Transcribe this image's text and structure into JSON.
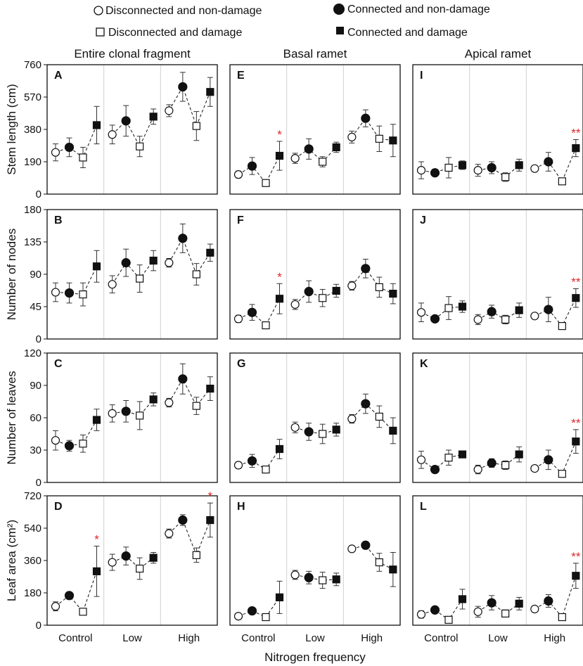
{
  "legend": {
    "items": [
      {
        "label": "Disconnected and non-damage",
        "marker": "open-circle"
      },
      {
        "label": "Connected and non-damage",
        "marker": "filled-circle"
      },
      {
        "label": "Disconnected and damage",
        "marker": "open-square"
      },
      {
        "label": "Connected and damage",
        "marker": "filled-square"
      }
    ]
  },
  "column_headers": [
    "Entire clonal fragment",
    "Basal ramet",
    "Apical ramet"
  ],
  "xlabel": "Nitrogen frequency",
  "categories": [
    "Control",
    "Low",
    "High"
  ],
  "significance_color": "#e0262a",
  "chart_data": [
    {
      "type": "scatter",
      "panel": "A",
      "row": 0,
      "col": 0,
      "ylabel": "Stem length (cm)",
      "ylim": [
        0,
        760
      ],
      "yticks": [
        "0",
        "190",
        "380",
        "570",
        "760"
      ],
      "points": [
        {
          "g": "Control",
          "t": "DN",
          "mean": 245,
          "err": 50
        },
        {
          "g": "Control",
          "t": "CN",
          "mean": 275,
          "err": 55
        },
        {
          "g": "Control",
          "t": "DD",
          "mean": 215,
          "err": 60
        },
        {
          "g": "Control",
          "t": "CD",
          "mean": 405,
          "err": 110
        },
        {
          "g": "Low",
          "t": "DN",
          "mean": 350,
          "err": 55
        },
        {
          "g": "Low",
          "t": "CN",
          "mean": 430,
          "err": 90
        },
        {
          "g": "Low",
          "t": "DD",
          "mean": 280,
          "err": 60
        },
        {
          "g": "Low",
          "t": "CD",
          "mean": 455,
          "err": 45
        },
        {
          "g": "High",
          "t": "DN",
          "mean": 490,
          "err": 35
        },
        {
          "g": "High",
          "t": "CN",
          "mean": 630,
          "err": 85
        },
        {
          "g": "High",
          "t": "DD",
          "mean": 400,
          "err": 85
        },
        {
          "g": "High",
          "t": "CD",
          "mean": 600,
          "err": 85
        }
      ],
      "stars": []
    },
    {
      "type": "scatter",
      "panel": "E",
      "row": 0,
      "col": 1,
      "ylim": [
        0,
        760
      ],
      "yticks": [],
      "points": [
        {
          "g": "Control",
          "t": "DN",
          "mean": 115,
          "err": 20
        },
        {
          "g": "Control",
          "t": "CN",
          "mean": 165,
          "err": 50
        },
        {
          "g": "Control",
          "t": "DD",
          "mean": 65,
          "err": 10
        },
        {
          "g": "Control",
          "t": "CD",
          "mean": 225,
          "err": 85
        },
        {
          "g": "Low",
          "t": "DN",
          "mean": 210,
          "err": 30
        },
        {
          "g": "Low",
          "t": "CN",
          "mean": 265,
          "err": 60
        },
        {
          "g": "Low",
          "t": "DD",
          "mean": 190,
          "err": 30
        },
        {
          "g": "Low",
          "t": "CD",
          "mean": 275,
          "err": 30
        },
        {
          "g": "High",
          "t": "DN",
          "mean": 335,
          "err": 35
        },
        {
          "g": "High",
          "t": "CN",
          "mean": 445,
          "err": 50
        },
        {
          "g": "High",
          "t": "DD",
          "mean": 325,
          "err": 75
        },
        {
          "g": "High",
          "t": "CD",
          "mean": 315,
          "err": 95
        }
      ],
      "stars": [
        {
          "g": "Control",
          "t": "CD",
          "label": "*"
        }
      ]
    },
    {
      "type": "scatter",
      "panel": "I",
      "row": 0,
      "col": 2,
      "ylim": [
        0,
        760
      ],
      "yticks": [],
      "points": [
        {
          "g": "Control",
          "t": "DN",
          "mean": 140,
          "err": 50
        },
        {
          "g": "Control",
          "t": "CN",
          "mean": 125,
          "err": 20
        },
        {
          "g": "Control",
          "t": "DD",
          "mean": 155,
          "err": 60
        },
        {
          "g": "Control",
          "t": "CD",
          "mean": 170,
          "err": 25
        },
        {
          "g": "Low",
          "t": "DN",
          "mean": 140,
          "err": 35
        },
        {
          "g": "Low",
          "t": "CN",
          "mean": 155,
          "err": 35
        },
        {
          "g": "Low",
          "t": "DD",
          "mean": 100,
          "err": 25
        },
        {
          "g": "Low",
          "t": "CD",
          "mean": 170,
          "err": 35
        },
        {
          "g": "High",
          "t": "DN",
          "mean": 150,
          "err": 15
        },
        {
          "g": "High",
          "t": "CN",
          "mean": 190,
          "err": 55
        },
        {
          "g": "High",
          "t": "DD",
          "mean": 75,
          "err": 15
        },
        {
          "g": "High",
          "t": "CD",
          "mean": 270,
          "err": 50
        }
      ],
      "stars": [
        {
          "g": "High",
          "t": "CD",
          "label": "**"
        }
      ]
    },
    {
      "type": "scatter",
      "panel": "B",
      "row": 1,
      "col": 0,
      "ylabel": "Number of nodes",
      "ylim": [
        0,
        180
      ],
      "yticks": [
        "0",
        "45",
        "90",
        "135",
        "180"
      ],
      "points": [
        {
          "g": "Control",
          "t": "DN",
          "mean": 65,
          "err": 13
        },
        {
          "g": "Control",
          "t": "CN",
          "mean": 64,
          "err": 14
        },
        {
          "g": "Control",
          "t": "DD",
          "mean": 62,
          "err": 16
        },
        {
          "g": "Control",
          "t": "CD",
          "mean": 101,
          "err": 22
        },
        {
          "g": "Low",
          "t": "DN",
          "mean": 76,
          "err": 12
        },
        {
          "g": "Low",
          "t": "CN",
          "mean": 106,
          "err": 19
        },
        {
          "g": "Low",
          "t": "DD",
          "mean": 84,
          "err": 19
        },
        {
          "g": "Low",
          "t": "CD",
          "mean": 109,
          "err": 14
        },
        {
          "g": "High",
          "t": "DN",
          "mean": 106,
          "err": 6
        },
        {
          "g": "High",
          "t": "CN",
          "mean": 140,
          "err": 20
        },
        {
          "g": "High",
          "t": "DD",
          "mean": 90,
          "err": 15
        },
        {
          "g": "High",
          "t": "CD",
          "mean": 120,
          "err": 12
        }
      ],
      "stars": []
    },
    {
      "type": "scatter",
      "panel": "F",
      "row": 1,
      "col": 1,
      "ylim": [
        0,
        180
      ],
      "yticks": [],
      "points": [
        {
          "g": "Control",
          "t": "DN",
          "mean": 28,
          "err": 5
        },
        {
          "g": "Control",
          "t": "CN",
          "mean": 37,
          "err": 11
        },
        {
          "g": "Control",
          "t": "DD",
          "mean": 19,
          "err": 3
        },
        {
          "g": "Control",
          "t": "CD",
          "mean": 56,
          "err": 21
        },
        {
          "g": "Low",
          "t": "DN",
          "mean": 48,
          "err": 7
        },
        {
          "g": "Low",
          "t": "CN",
          "mean": 66,
          "err": 15
        },
        {
          "g": "Low",
          "t": "DD",
          "mean": 57,
          "err": 12
        },
        {
          "g": "Low",
          "t": "CD",
          "mean": 67,
          "err": 9
        },
        {
          "g": "High",
          "t": "DN",
          "mean": 74,
          "err": 6
        },
        {
          "g": "High",
          "t": "CN",
          "mean": 98,
          "err": 13
        },
        {
          "g": "High",
          "t": "DD",
          "mean": 72,
          "err": 14
        },
        {
          "g": "High",
          "t": "CD",
          "mean": 63,
          "err": 14
        }
      ],
      "stars": [
        {
          "g": "Control",
          "t": "CD",
          "label": "*"
        }
      ]
    },
    {
      "type": "scatter",
      "panel": "J",
      "row": 1,
      "col": 2,
      "ylim": [
        0,
        180
      ],
      "yticks": [],
      "points": [
        {
          "g": "Control",
          "t": "DN",
          "mean": 37,
          "err": 13
        },
        {
          "g": "Control",
          "t": "CN",
          "mean": 28,
          "err": 4
        },
        {
          "g": "Control",
          "t": "DD",
          "mean": 43,
          "err": 16
        },
        {
          "g": "Control",
          "t": "CD",
          "mean": 45,
          "err": 8
        },
        {
          "g": "Low",
          "t": "DN",
          "mean": 27,
          "err": 7
        },
        {
          "g": "Low",
          "t": "CN",
          "mean": 38,
          "err": 9
        },
        {
          "g": "Low",
          "t": "DD",
          "mean": 27,
          "err": 6
        },
        {
          "g": "Low",
          "t": "CD",
          "mean": 40,
          "err": 10
        },
        {
          "g": "High",
          "t": "DN",
          "mean": 32,
          "err": 3
        },
        {
          "g": "High",
          "t": "CN",
          "mean": 41,
          "err": 17
        },
        {
          "g": "High",
          "t": "DD",
          "mean": 18,
          "err": 3
        },
        {
          "g": "High",
          "t": "CD",
          "mean": 57,
          "err": 13
        }
      ],
      "stars": [
        {
          "g": "High",
          "t": "CD",
          "label": "**"
        }
      ]
    },
    {
      "type": "scatter",
      "panel": "C",
      "row": 2,
      "col": 0,
      "ylabel": "Number of leaves",
      "ylim": [
        0,
        120
      ],
      "yticks": [
        "0",
        "30",
        "60",
        "90",
        "120"
      ],
      "points": [
        {
          "g": "Control",
          "t": "DN",
          "mean": 39,
          "err": 9
        },
        {
          "g": "Control",
          "t": "CN",
          "mean": 34,
          "err": 5
        },
        {
          "g": "Control",
          "t": "DD",
          "mean": 36,
          "err": 8
        },
        {
          "g": "Control",
          "t": "CD",
          "mean": 58,
          "err": 10
        },
        {
          "g": "Low",
          "t": "DN",
          "mean": 64,
          "err": 8
        },
        {
          "g": "Low",
          "t": "CN",
          "mean": 66,
          "err": 10
        },
        {
          "g": "Low",
          "t": "DD",
          "mean": 62,
          "err": 13
        },
        {
          "g": "Low",
          "t": "CD",
          "mean": 77,
          "err": 6
        },
        {
          "g": "High",
          "t": "DN",
          "mean": 74,
          "err": 4
        },
        {
          "g": "High",
          "t": "CN",
          "mean": 96,
          "err": 14
        },
        {
          "g": "High",
          "t": "DD",
          "mean": 71,
          "err": 8
        },
        {
          "g": "High",
          "t": "CD",
          "mean": 87,
          "err": 11
        }
      ],
      "stars": []
    },
    {
      "type": "scatter",
      "panel": "G",
      "row": 2,
      "col": 1,
      "ylim": [
        0,
        120
      ],
      "yticks": [],
      "points": [
        {
          "g": "Control",
          "t": "DN",
          "mean": 16,
          "err": 3
        },
        {
          "g": "Control",
          "t": "CN",
          "mean": 20,
          "err": 6
        },
        {
          "g": "Control",
          "t": "DD",
          "mean": 12,
          "err": 2
        },
        {
          "g": "Control",
          "t": "CD",
          "mean": 31,
          "err": 9
        },
        {
          "g": "Low",
          "t": "DN",
          "mean": 51,
          "err": 5
        },
        {
          "g": "Low",
          "t": "CN",
          "mean": 47,
          "err": 8
        },
        {
          "g": "Low",
          "t": "DD",
          "mean": 45,
          "err": 9
        },
        {
          "g": "Low",
          "t": "CD",
          "mean": 49,
          "err": 6
        },
        {
          "g": "High",
          "t": "DN",
          "mean": 59,
          "err": 4
        },
        {
          "g": "High",
          "t": "CN",
          "mean": 73,
          "err": 9
        },
        {
          "g": "High",
          "t": "DD",
          "mean": 61,
          "err": 10
        },
        {
          "g": "High",
          "t": "CD",
          "mean": 48,
          "err": 12
        }
      ],
      "stars": []
    },
    {
      "type": "scatter",
      "panel": "K",
      "row": 2,
      "col": 2,
      "ylim": [
        0,
        120
      ],
      "yticks": [],
      "points": [
        {
          "g": "Control",
          "t": "DN",
          "mean": 21,
          "err": 8
        },
        {
          "g": "Control",
          "t": "CN",
          "mean": 12,
          "err": 1
        },
        {
          "g": "Control",
          "t": "DD",
          "mean": 23,
          "err": 7
        },
        {
          "g": "Control",
          "t": "CD",
          "mean": 26,
          "err": 3
        },
        {
          "g": "Low",
          "t": "DN",
          "mean": 12,
          "err": 4
        },
        {
          "g": "Low",
          "t": "CN",
          "mean": 18,
          "err": 4
        },
        {
          "g": "Low",
          "t": "DD",
          "mean": 16,
          "err": 4
        },
        {
          "g": "Low",
          "t": "CD",
          "mean": 26,
          "err": 7
        },
        {
          "g": "High",
          "t": "DN",
          "mean": 13,
          "err": 2
        },
        {
          "g": "High",
          "t": "CN",
          "mean": 21,
          "err": 9
        },
        {
          "g": "High",
          "t": "DD",
          "mean": 8,
          "err": 1
        },
        {
          "g": "High",
          "t": "CD",
          "mean": 38,
          "err": 11
        }
      ],
      "stars": [
        {
          "g": "High",
          "t": "CD",
          "label": "**"
        }
      ]
    },
    {
      "type": "scatter",
      "panel": "D",
      "row": 3,
      "col": 0,
      "ylabel": "Leaf area (cm²)",
      "ylim": [
        0,
        720
      ],
      "yticks": [
        "0",
        "180",
        "360",
        "540",
        "720"
      ],
      "points": [
        {
          "g": "Control",
          "t": "DN",
          "mean": 105,
          "err": 25
        },
        {
          "g": "Control",
          "t": "CN",
          "mean": 165,
          "err": 20
        },
        {
          "g": "Control",
          "t": "DD",
          "mean": 75,
          "err": 8
        },
        {
          "g": "Control",
          "t": "CD",
          "mean": 300,
          "err": 140
        },
        {
          "g": "Low",
          "t": "DN",
          "mean": 350,
          "err": 45
        },
        {
          "g": "Low",
          "t": "CN",
          "mean": 385,
          "err": 50
        },
        {
          "g": "Low",
          "t": "DD",
          "mean": 315,
          "err": 60
        },
        {
          "g": "Low",
          "t": "CD",
          "mean": 375,
          "err": 30
        },
        {
          "g": "High",
          "t": "DN",
          "mean": 510,
          "err": 25
        },
        {
          "g": "High",
          "t": "CN",
          "mean": 585,
          "err": 30
        },
        {
          "g": "High",
          "t": "DD",
          "mean": 390,
          "err": 40
        },
        {
          "g": "High",
          "t": "CD",
          "mean": 585,
          "err": 95
        }
      ],
      "stars": [
        {
          "g": "Control",
          "t": "CD",
          "label": "*"
        },
        {
          "g": "High",
          "t": "CD",
          "label": "*"
        }
      ]
    },
    {
      "type": "scatter",
      "panel": "H",
      "row": 3,
      "col": 1,
      "ylim": [
        0,
        720
      ],
      "yticks": [],
      "points": [
        {
          "g": "Control",
          "t": "DN",
          "mean": 50,
          "err": 8
        },
        {
          "g": "Control",
          "t": "CN",
          "mean": 80,
          "err": 12
        },
        {
          "g": "Control",
          "t": "DD",
          "mean": 45,
          "err": 6
        },
        {
          "g": "Control",
          "t": "CD",
          "mean": 155,
          "err": 90
        },
        {
          "g": "Low",
          "t": "DN",
          "mean": 280,
          "err": 25
        },
        {
          "g": "Low",
          "t": "CN",
          "mean": 265,
          "err": 35
        },
        {
          "g": "Low",
          "t": "DD",
          "mean": 250,
          "err": 45
        },
        {
          "g": "Low",
          "t": "CD",
          "mean": 255,
          "err": 35
        },
        {
          "g": "High",
          "t": "DN",
          "mean": 425,
          "err": 12
        },
        {
          "g": "High",
          "t": "CN",
          "mean": 445,
          "err": 20
        },
        {
          "g": "High",
          "t": "DD",
          "mean": 350,
          "err": 50
        },
        {
          "g": "High",
          "t": "CD",
          "mean": 310,
          "err": 95
        }
      ],
      "stars": []
    },
    {
      "type": "scatter",
      "panel": "L",
      "row": 3,
      "col": 2,
      "ylim": [
        0,
        720
      ],
      "yticks": [],
      "points": [
        {
          "g": "Control",
          "t": "DN",
          "mean": 60,
          "err": 20
        },
        {
          "g": "Control",
          "t": "CN",
          "mean": 85,
          "err": 8
        },
        {
          "g": "Control",
          "t": "DD",
          "mean": 30,
          "err": 4
        },
        {
          "g": "Control",
          "t": "CD",
          "mean": 145,
          "err": 55
        },
        {
          "g": "Low",
          "t": "DN",
          "mean": 75,
          "err": 30
        },
        {
          "g": "Low",
          "t": "CN",
          "mean": 125,
          "err": 40
        },
        {
          "g": "Low",
          "t": "DD",
          "mean": 65,
          "err": 20
        },
        {
          "g": "Low",
          "t": "CD",
          "mean": 120,
          "err": 35
        },
        {
          "g": "High",
          "t": "DN",
          "mean": 90,
          "err": 10
        },
        {
          "g": "High",
          "t": "CN",
          "mean": 135,
          "err": 35
        },
        {
          "g": "High",
          "t": "DD",
          "mean": 45,
          "err": 8
        },
        {
          "g": "High",
          "t": "CD",
          "mean": 275,
          "err": 70
        }
      ],
      "stars": [
        {
          "g": "High",
          "t": "CD",
          "label": "**"
        }
      ]
    }
  ]
}
